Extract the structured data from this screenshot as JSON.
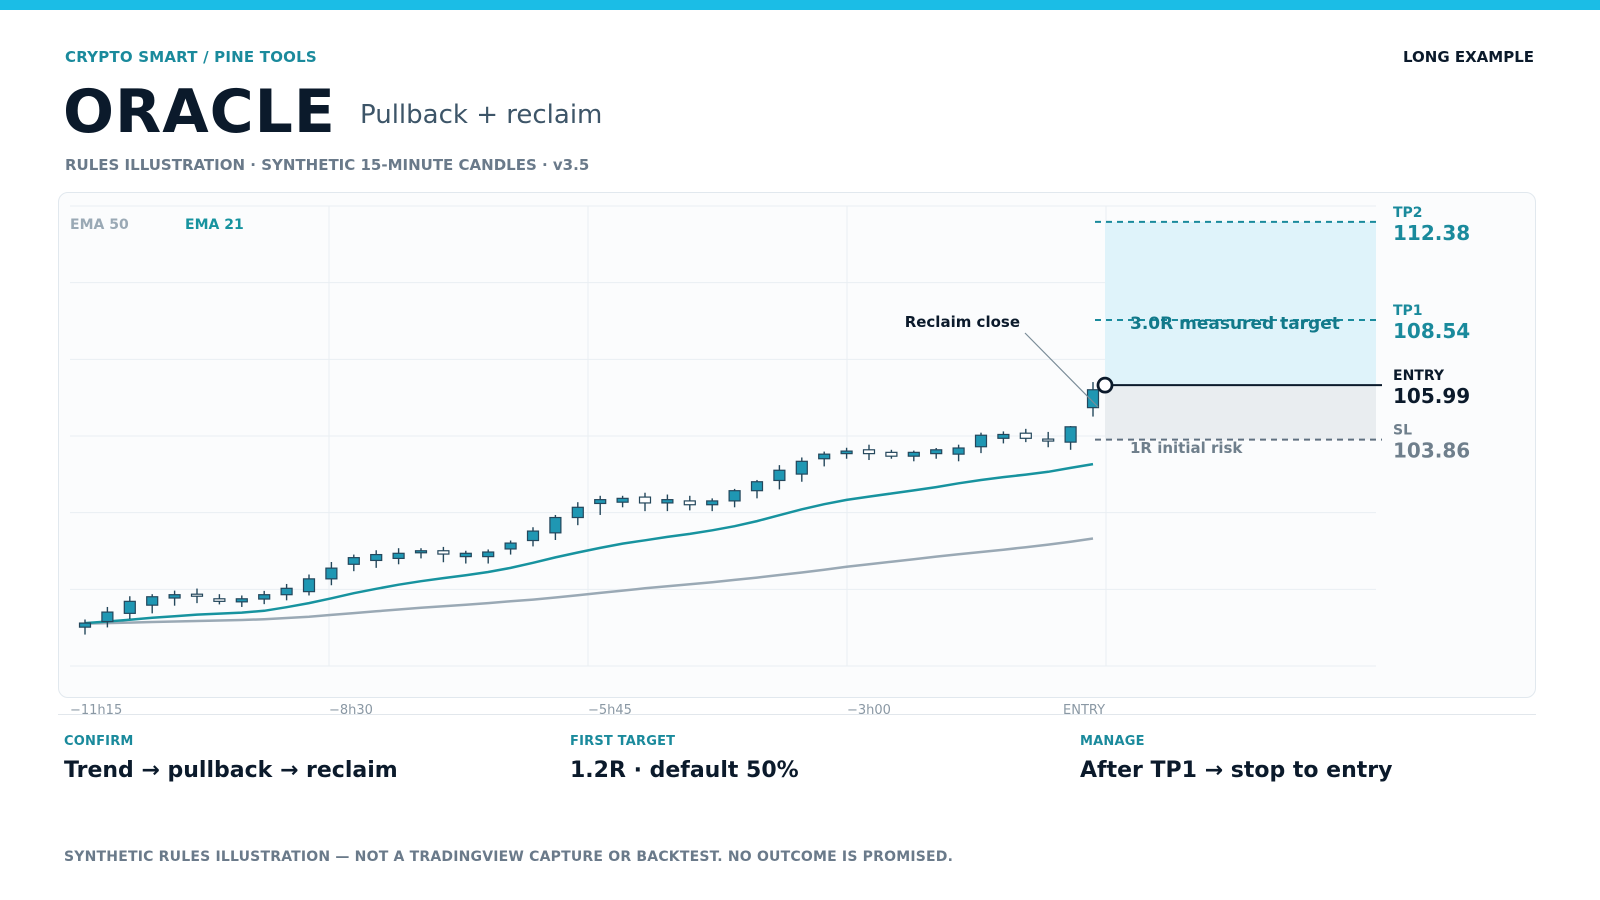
{
  "header": {
    "brand": "CRYPTO SMART / PINE TOOLS",
    "tag": "LONG EXAMPLE",
    "title": "ORACLE",
    "subtitle": "Pullback + reclaim",
    "meta": "RULES ILLUSTRATION · SYNTHETIC 15-MINUTE CANDLES · v3.5"
  },
  "colors": {
    "accent": "#1bbde6",
    "teal": "#1a8a9c",
    "candle_fill": "#1f97b3",
    "candle_edge": "#24475c",
    "ema21": "#17939f",
    "ema50": "#9aa9b5",
    "target_zone": "#dff3fa",
    "risk_zone": "#e9edf0",
    "dark": "#0b1a2b",
    "muted": "#6a7a8a"
  },
  "chart_data": {
    "type": "candlestick",
    "interval": "15-minute",
    "x_ticks": [
      "−11h15",
      "−8h30",
      "−5h45",
      "−3h00",
      "ENTRY"
    ],
    "ylim": [
      95.0,
      113.0
    ],
    "legend": [
      {
        "name": "EMA 50",
        "color": "#9aa9b5"
      },
      {
        "name": "EMA 21",
        "color": "#17939f"
      }
    ],
    "candles": [
      {
        "o": 96.52,
        "h": 96.82,
        "l": 96.23,
        "c": 96.68
      },
      {
        "o": 96.74,
        "h": 97.31,
        "l": 96.51,
        "c": 97.11
      },
      {
        "o": 97.06,
        "h": 97.73,
        "l": 96.84,
        "c": 97.53
      },
      {
        "o": 97.38,
        "h": 97.81,
        "l": 97.06,
        "c": 97.71
      },
      {
        "o": 97.66,
        "h": 97.95,
        "l": 97.36,
        "c": 97.79
      },
      {
        "o": 97.81,
        "h": 98.03,
        "l": 97.46,
        "c": 97.73
      },
      {
        "o": 97.63,
        "h": 97.81,
        "l": 97.41,
        "c": 97.53
      },
      {
        "o": 97.51,
        "h": 97.76,
        "l": 97.31,
        "c": 97.63
      },
      {
        "o": 97.62,
        "h": 97.94,
        "l": 97.42,
        "c": 97.79
      },
      {
        "o": 97.79,
        "h": 98.21,
        "l": 97.57,
        "c": 98.04
      },
      {
        "o": 97.91,
        "h": 98.58,
        "l": 97.76,
        "c": 98.41
      },
      {
        "o": 98.41,
        "h": 99.07,
        "l": 98.16,
        "c": 98.83
      },
      {
        "o": 98.98,
        "h": 99.36,
        "l": 98.71,
        "c": 99.24
      },
      {
        "o": 99.13,
        "h": 99.53,
        "l": 98.84,
        "c": 99.36
      },
      {
        "o": 99.21,
        "h": 99.61,
        "l": 98.98,
        "c": 99.41
      },
      {
        "o": 99.43,
        "h": 99.61,
        "l": 99.21,
        "c": 99.51
      },
      {
        "o": 99.51,
        "h": 99.66,
        "l": 99.06,
        "c": 99.38
      },
      {
        "o": 99.28,
        "h": 99.51,
        "l": 99.01,
        "c": 99.41
      },
      {
        "o": 99.28,
        "h": 99.56,
        "l": 99.01,
        "c": 99.46
      },
      {
        "o": 99.58,
        "h": 99.91,
        "l": 99.36,
        "c": 99.81
      },
      {
        "o": 99.91,
        "h": 100.43,
        "l": 99.68,
        "c": 100.28
      },
      {
        "o": 100.21,
        "h": 100.91,
        "l": 99.93,
        "c": 100.81
      },
      {
        "o": 100.81,
        "h": 101.41,
        "l": 100.51,
        "c": 101.21
      },
      {
        "o": 101.36,
        "h": 101.66,
        "l": 100.91,
        "c": 101.51
      },
      {
        "o": 101.41,
        "h": 101.66,
        "l": 101.21,
        "c": 101.56
      },
      {
        "o": 101.61,
        "h": 101.78,
        "l": 101.06,
        "c": 101.38
      },
      {
        "o": 101.38,
        "h": 101.71,
        "l": 101.06,
        "c": 101.51
      },
      {
        "o": 101.46,
        "h": 101.66,
        "l": 101.09,
        "c": 101.31
      },
      {
        "o": 101.31,
        "h": 101.56,
        "l": 101.06,
        "c": 101.46
      },
      {
        "o": 101.46,
        "h": 101.93,
        "l": 101.21,
        "c": 101.86
      },
      {
        "o": 101.86,
        "h": 102.28,
        "l": 101.56,
        "c": 102.21
      },
      {
        "o": 102.26,
        "h": 102.86,
        "l": 101.91,
        "c": 102.66
      },
      {
        "o": 102.51,
        "h": 103.16,
        "l": 102.21,
        "c": 103.01
      },
      {
        "o": 103.11,
        "h": 103.39,
        "l": 102.81,
        "c": 103.29
      },
      {
        "o": 103.31,
        "h": 103.54,
        "l": 103.11,
        "c": 103.41
      },
      {
        "o": 103.46,
        "h": 103.66,
        "l": 103.06,
        "c": 103.31
      },
      {
        "o": 103.36,
        "h": 103.46,
        "l": 103.11,
        "c": 103.21
      },
      {
        "o": 103.21,
        "h": 103.43,
        "l": 103.01,
        "c": 103.36
      },
      {
        "o": 103.31,
        "h": 103.53,
        "l": 103.11,
        "c": 103.46
      },
      {
        "o": 103.29,
        "h": 103.66,
        "l": 103.01,
        "c": 103.53
      },
      {
        "o": 103.58,
        "h": 104.13,
        "l": 103.33,
        "c": 104.03
      },
      {
        "o": 103.91,
        "h": 104.18,
        "l": 103.71,
        "c": 104.06
      },
      {
        "o": 104.11,
        "h": 104.28,
        "l": 103.76,
        "c": 103.91
      },
      {
        "o": 103.88,
        "h": 104.16,
        "l": 103.56,
        "c": 103.86
      },
      {
        "o": 103.76,
        "h": 104.39,
        "l": 103.46,
        "c": 104.36
      },
      {
        "o": 105.11,
        "h": 106.11,
        "l": 104.76,
        "c": 105.81
      }
    ],
    "series": [
      {
        "name": "EMA 21",
        "values": [
          96.68,
          96.74,
          96.81,
          96.89,
          96.95,
          97.01,
          97.05,
          97.09,
          97.16,
          97.3,
          97.46,
          97.65,
          97.85,
          98.02,
          98.18,
          98.32,
          98.44,
          98.55,
          98.68,
          98.84,
          99.04,
          99.25,
          99.44,
          99.62,
          99.79,
          99.92,
          100.05,
          100.17,
          100.31,
          100.47,
          100.67,
          100.9,
          101.13,
          101.33,
          101.5,
          101.63,
          101.75,
          101.87,
          102.0,
          102.15,
          102.28,
          102.39,
          102.49,
          102.6,
          102.75,
          102.9
        ]
      },
      {
        "name": "EMA 50",
        "values": [
          96.66,
          96.68,
          96.7,
          96.72,
          96.74,
          96.76,
          96.78,
          96.8,
          96.83,
          96.88,
          96.93,
          97.0,
          97.07,
          97.14,
          97.21,
          97.28,
          97.34,
          97.4,
          97.46,
          97.53,
          97.6,
          97.68,
          97.77,
          97.86,
          97.95,
          98.04,
          98.12,
          98.2,
          98.28,
          98.37,
          98.46,
          98.56,
          98.66,
          98.77,
          98.88,
          98.98,
          99.08,
          99.18,
          99.28,
          99.37,
          99.46,
          99.55,
          99.65,
          99.75,
          99.86,
          99.99
        ]
      }
    ],
    "levels": [
      {
        "name": "TP2",
        "value": 112.38
      },
      {
        "name": "TP1",
        "value": 108.54
      },
      {
        "name": "ENTRY",
        "value": 105.99
      },
      {
        "name": "SL",
        "value": 103.86
      }
    ],
    "annotations": {
      "reclaim": "Reclaim close",
      "target": "3.0R measured target",
      "risk": "1R initial risk"
    }
  },
  "cards": [
    {
      "label": "CONFIRM",
      "value": "Trend → pullback → reclaim"
    },
    {
      "label": "FIRST TARGET",
      "value": "1.2R · default 50%"
    },
    {
      "label": "MANAGE",
      "value": "After TP1 → stop to entry"
    }
  ],
  "footer": {
    "disclaimer": "SYNTHETIC RULES ILLUSTRATION — NOT A TRADINGVIEW CAPTURE OR BACKTEST. NO OUTCOME IS PROMISED."
  }
}
